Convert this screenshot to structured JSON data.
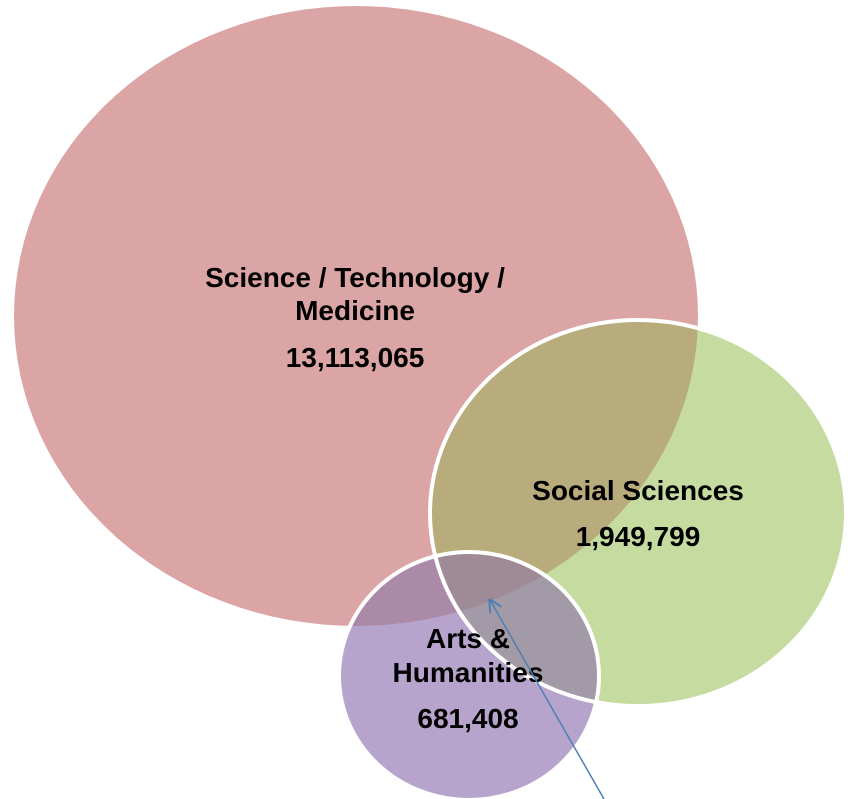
{
  "diagram": {
    "type": "venn",
    "sets": [
      {
        "id": "stm",
        "name_lines": [
          "Science / Technology /",
          "Medicine"
        ],
        "count": "13,113,065",
        "color": "#dca5a5"
      },
      {
        "id": "social",
        "name_lines": [
          "Social Sciences"
        ],
        "count": "1,949,799",
        "color": "#c5dba0"
      },
      {
        "id": "arts",
        "name_lines": [
          "Arts &",
          "Humanities"
        ],
        "count": "681,408",
        "color": "#b7a4cc"
      }
    ],
    "overlap_colors": {
      "stm_social": "#b8ab7c",
      "stm_arts": "#ab8aa7",
      "social_arts": "#a29aa6",
      "all_three": "#9e8b95"
    },
    "circle_outline_color": "#ffffff",
    "pointer_arrow_color": "#4f7fb5"
  }
}
